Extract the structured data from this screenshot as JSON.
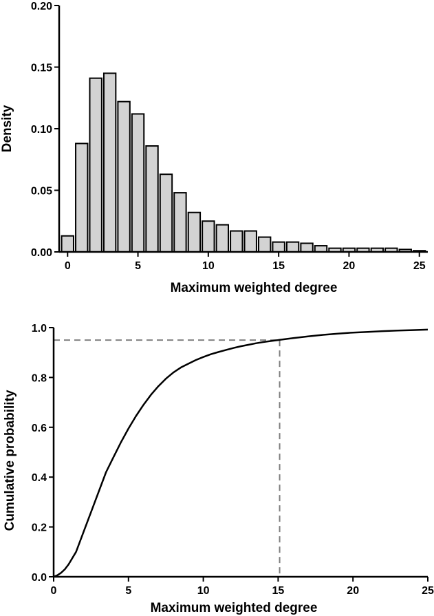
{
  "chart_data": [
    {
      "type": "bar",
      "xlabel": "Maximum weighted degree",
      "ylabel": "Density",
      "xlim": [
        -0.6,
        25.6
      ],
      "ylim": [
        0,
        0.2
      ],
      "xticks": [
        0,
        5,
        10,
        15,
        20,
        25
      ],
      "yticks": [
        0.0,
        0.05,
        0.1,
        0.15,
        0.2
      ],
      "ytick_labels": [
        "0.00",
        "0.05",
        "0.10",
        "0.15",
        "0.20"
      ],
      "grid": false,
      "bar_fill": "#d3d3d3",
      "bar_stroke": "#000000",
      "categories": [
        0,
        1,
        2,
        3,
        4,
        5,
        6,
        7,
        8,
        9,
        10,
        11,
        12,
        13,
        14,
        15,
        16,
        17,
        18,
        19,
        20,
        21,
        22,
        23,
        24,
        25
      ],
      "values": [
        0.013,
        0.088,
        0.141,
        0.145,
        0.122,
        0.112,
        0.086,
        0.063,
        0.048,
        0.032,
        0.025,
        0.022,
        0.017,
        0.017,
        0.012,
        0.008,
        0.008,
        0.007,
        0.005,
        0.003,
        0.003,
        0.003,
        0.003,
        0.003,
        0.002,
        0.001
      ]
    },
    {
      "type": "line",
      "xlabel": "Maximum weighted degree",
      "ylabel": "Cumulative probability",
      "xlim": [
        0,
        25
      ],
      "ylim": [
        0,
        1.0
      ],
      "xticks": [
        0,
        5,
        10,
        15,
        20,
        25
      ],
      "yticks": [
        0.0,
        0.2,
        0.4,
        0.6,
        0.8,
        1.0
      ],
      "ytick_labels": [
        "0.0",
        "0.2",
        "0.4",
        "0.6",
        "0.8",
        "1.0"
      ],
      "grid": false,
      "line_color": "#000000",
      "reference_color": "#808080",
      "reference": {
        "x": 15.1,
        "y": 0.95
      },
      "series": [
        {
          "x": [
            0,
            0.25,
            0.5,
            0.75,
            1,
            1.5,
            2,
            2.5,
            3,
            3.5,
            4,
            4.5,
            5,
            5.5,
            6,
            6.5,
            7,
            7.5,
            8,
            8.5,
            9,
            9.5,
            10,
            10.5,
            11,
            11.5,
            12,
            12.5,
            13,
            13.5,
            14,
            14.5,
            15,
            15.1,
            16,
            17,
            18,
            19,
            20,
            21,
            22,
            23,
            24,
            25
          ],
          "y": [
            0,
            0.006,
            0.016,
            0.03,
            0.05,
            0.1,
            0.18,
            0.26,
            0.34,
            0.42,
            0.48,
            0.54,
            0.595,
            0.645,
            0.69,
            0.73,
            0.765,
            0.795,
            0.82,
            0.84,
            0.855,
            0.87,
            0.882,
            0.893,
            0.902,
            0.91,
            0.918,
            0.925,
            0.931,
            0.937,
            0.942,
            0.946,
            0.95,
            0.951,
            0.958,
            0.965,
            0.971,
            0.976,
            0.98,
            0.983,
            0.986,
            0.988,
            0.99,
            0.992
          ]
        }
      ]
    }
  ]
}
